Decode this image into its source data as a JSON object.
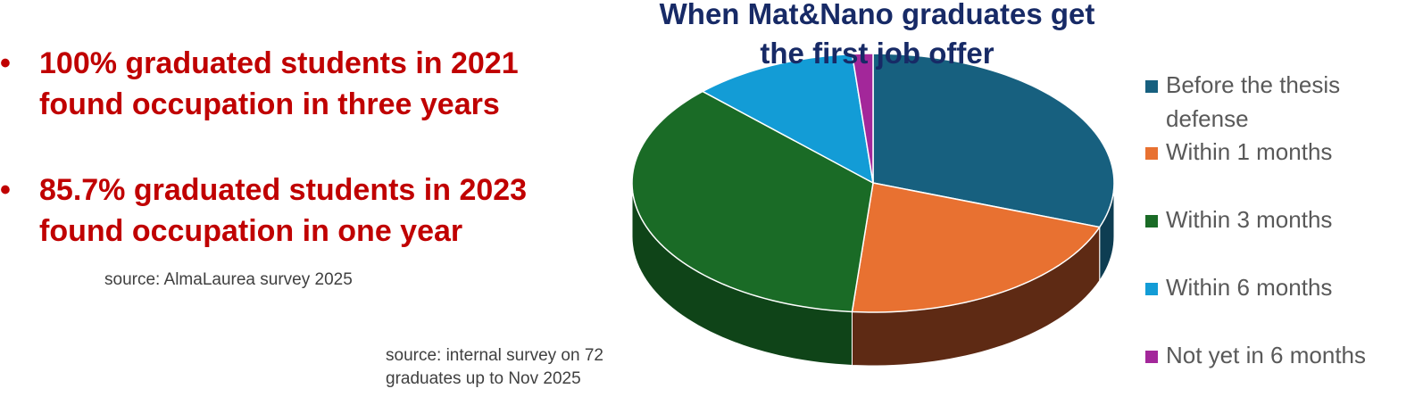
{
  "bullets": [
    "100% graduated students in 2021 found occupation in three years",
    "85.7% graduated students in 2023 found occupation in one year"
  ],
  "source_left": "source: AlmaLaurea survey 2025",
  "source_chart": "source: internal survey on 72 graduates up to Nov 2025",
  "chart_data": {
    "type": "pie",
    "title": "When Mat&Nano graduates get the first job offer",
    "categories": [
      "Before the thesis defense",
      "Within 1 months",
      "Within 3 months",
      "Within 6 months",
      "Not yet in 6 months"
    ],
    "values": [
      22,
      15,
      26,
      8,
      1
    ],
    "colors": [
      "#17607f",
      "#e87131",
      "#1a6b26",
      "#139cd6",
      "#a3279a"
    ],
    "side_colors": [
      "#0e3d52",
      "#5e2a14",
      "#0f4418",
      "#0b6088",
      "#641460"
    ]
  }
}
